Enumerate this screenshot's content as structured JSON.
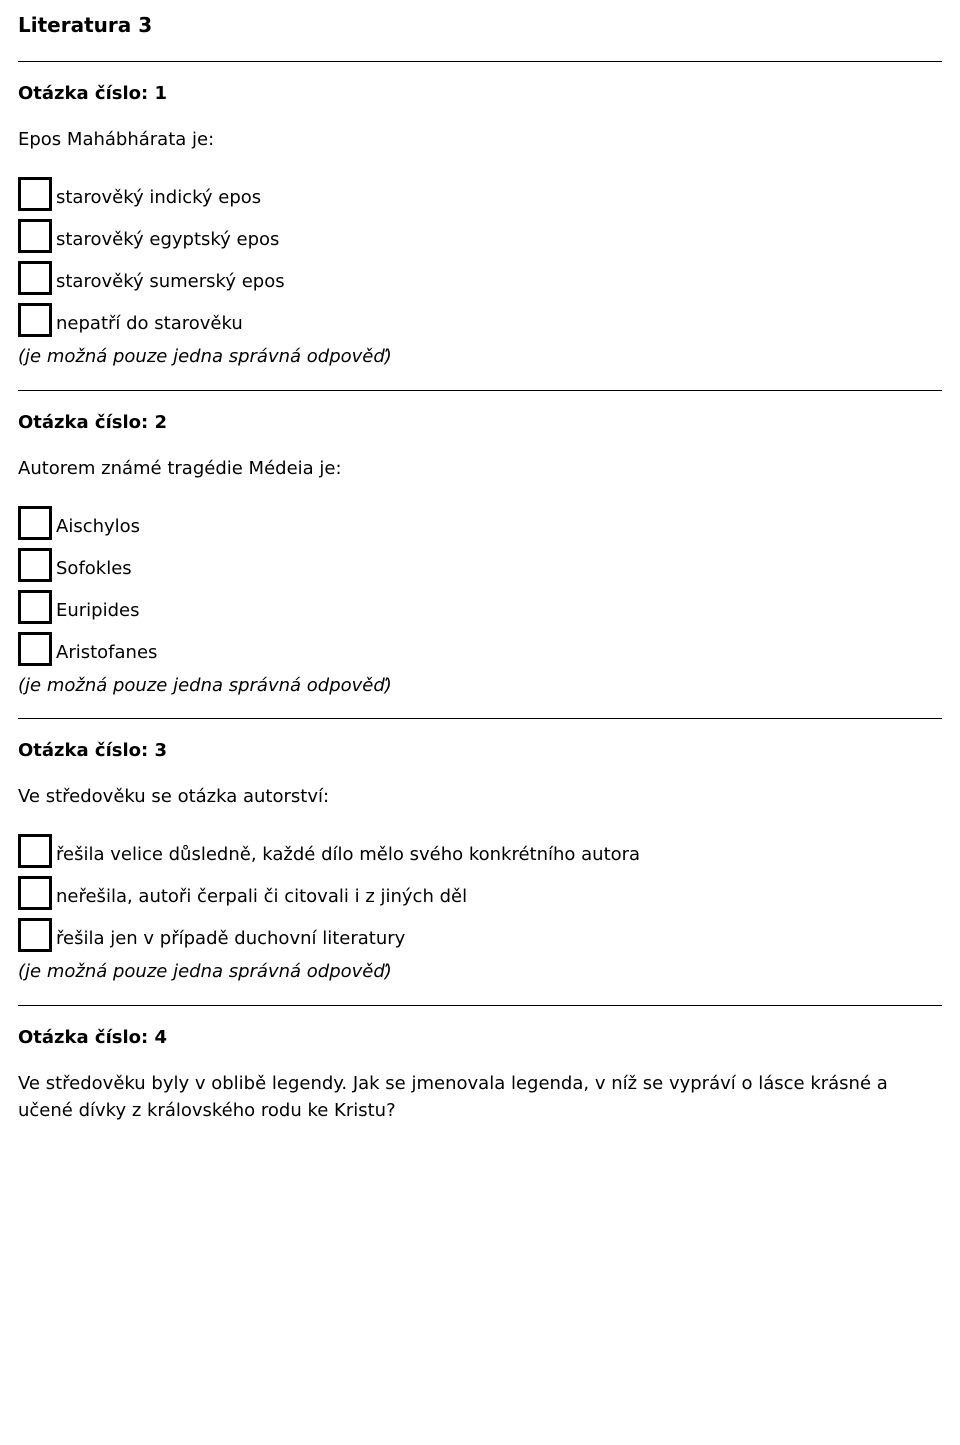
{
  "title": "Literatura 3",
  "hint": "(je možná pouze jedna správná odpověď)",
  "questions": {
    "q1": {
      "heading": "Otázka číslo: 1",
      "prompt": "Epos Mahábhárata je:",
      "options": [
        "starověký indický epos",
        "starověký egyptský epos",
        "starověký sumerský epos",
        "nepatří do starověku"
      ]
    },
    "q2": {
      "heading": "Otázka číslo: 2",
      "prompt": "Autorem známé tragédie Médeia je:",
      "options": [
        "Aischylos",
        "Sofokles",
        "Euripides",
        "Aristofanes"
      ]
    },
    "q3": {
      "heading": "Otázka číslo: 3",
      "prompt": "Ve středověku se otázka autorství:",
      "options": [
        "řešila velice důsledně, každé dílo mělo svého konkrétního autora",
        "neřešila, autoři čerpali či citovali i z jiných děl",
        "řešila jen v případě duchovní literatury"
      ]
    },
    "q4": {
      "heading": "Otázka číslo: 4",
      "prompt": "Ve středověku byly v oblibě legendy. Jak se jmenovala legenda, v níž se vypráví o lásce krásné a učené dívky z královského rodu ke Kristu?"
    }
  }
}
